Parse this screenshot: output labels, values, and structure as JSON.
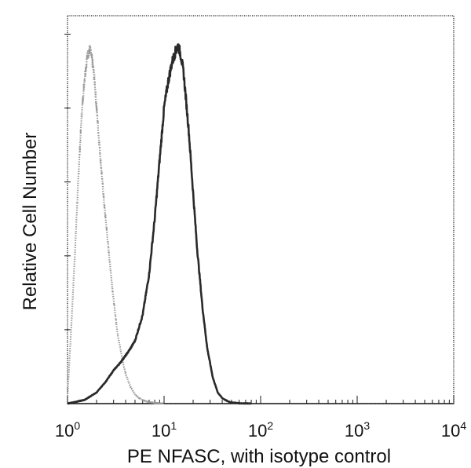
{
  "chart_data": {
    "type": "line",
    "xlabel": "PE NFASC, with isotype control",
    "ylabel": "Relative Cell Number",
    "x_scale": "log",
    "xlim": [
      1,
      10000
    ],
    "ylim": [
      0,
      1.05
    ],
    "grid": false,
    "x_ticks": [
      {
        "base": "10",
        "exp": "0",
        "value": 1
      },
      {
        "base": "10",
        "exp": "1",
        "value": 10
      },
      {
        "base": "10",
        "exp": "2",
        "value": 100
      },
      {
        "base": "10",
        "exp": "3",
        "value": 1000
      },
      {
        "base": "10",
        "exp": "4",
        "value": 10000
      }
    ],
    "series": [
      {
        "role": "isotype control",
        "color": "#9a9a9a",
        "x": [
          1.0,
          1.1,
          1.2,
          1.3,
          1.4,
          1.5,
          1.6,
          1.7,
          1.8,
          1.9,
          2.0,
          2.2,
          2.4,
          2.7,
          3.0,
          3.3,
          3.7,
          4.0,
          4.5,
          5.0,
          5.5,
          6.0,
          6.5,
          7.0,
          8.0,
          9.0,
          10.0
        ],
        "y": [
          0.02,
          0.22,
          0.42,
          0.62,
          0.78,
          0.88,
          0.94,
          0.96,
          0.93,
          0.88,
          0.8,
          0.66,
          0.54,
          0.4,
          0.28,
          0.19,
          0.12,
          0.08,
          0.045,
          0.025,
          0.015,
          0.01,
          0.006,
          0.004,
          0.002,
          0.001,
          0.0
        ]
      },
      {
        "role": "PE NFASC",
        "color": "#2a2a2a",
        "x": [
          1.0,
          1.5,
          2.0,
          2.5,
          3.0,
          3.5,
          4.0,
          4.5,
          5.0,
          6.0,
          7.0,
          8.0,
          9.0,
          10.0,
          11.0,
          12.0,
          13.0,
          14.0,
          15.0,
          16.0,
          18.0,
          20.0,
          22.0,
          25.0,
          28.0,
          32.0,
          36.0,
          40.0,
          45.0,
          50.0,
          60.0,
          80.0
        ],
        "y": [
          0.0,
          0.01,
          0.03,
          0.06,
          0.09,
          0.11,
          0.13,
          0.15,
          0.17,
          0.24,
          0.35,
          0.5,
          0.66,
          0.8,
          0.87,
          0.92,
          0.95,
          0.97,
          0.94,
          0.89,
          0.74,
          0.57,
          0.42,
          0.26,
          0.15,
          0.07,
          0.03,
          0.015,
          0.007,
          0.003,
          0.001,
          0.0
        ]
      }
    ]
  }
}
